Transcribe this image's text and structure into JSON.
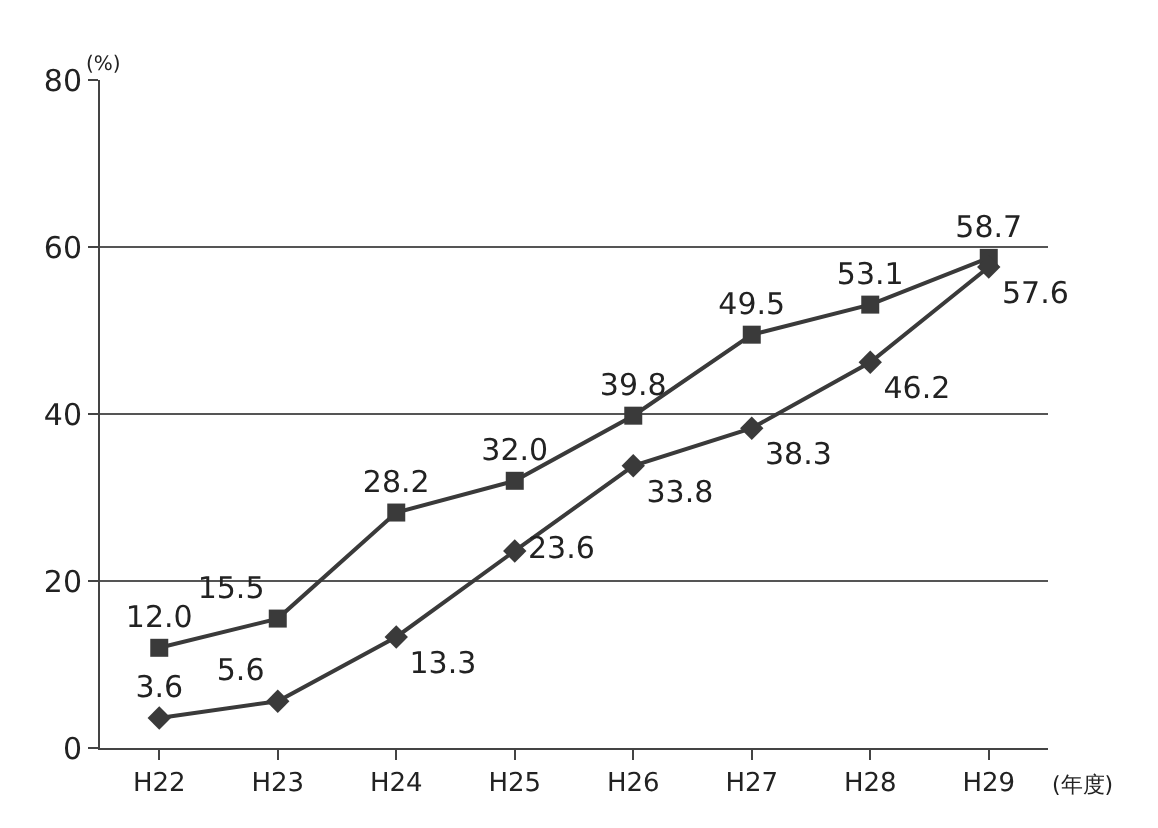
{
  "chart_data": {
    "type": "line",
    "ylabel": "(%)",
    "xlabel": "(年度)",
    "categories": [
      "H22",
      "H23",
      "H24",
      "H25",
      "H26",
      "H27",
      "H28",
      "H29"
    ],
    "series": [
      {
        "color": "#3a3a3a",
        "marker": "square",
        "values": [
          12.0,
          15.5,
          28.2,
          32.0,
          39.8,
          49.5,
          53.1,
          58.7
        ],
        "value_labels": [
          "12.0",
          "15.5",
          "28.2",
          "32.0",
          "39.8",
          "49.5",
          "53.1",
          "58.7"
        ]
      },
      {
        "color": "#3a3a3a",
        "marker": "diamond",
        "values": [
          3.6,
          5.6,
          13.3,
          23.6,
          33.8,
          38.3,
          46.2,
          57.6
        ],
        "value_labels": [
          "3.6",
          "5.6",
          "13.3",
          "23.6",
          "33.8",
          "38.3",
          "46.2",
          "57.6"
        ]
      }
    ],
    "ylim": [
      0,
      80
    ],
    "yticks": [
      0,
      20,
      40,
      60,
      80
    ],
    "grid": "y",
    "legend": false,
    "line_style": "solid"
  }
}
